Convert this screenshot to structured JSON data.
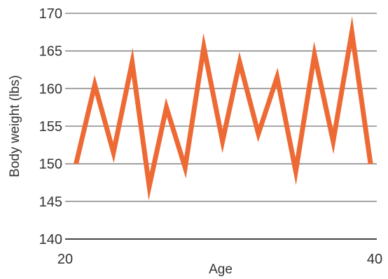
{
  "chart_data": {
    "type": "line",
    "title": "",
    "xlabel": "Age",
    "ylabel": "Body weight (lbs)",
    "xlim": [
      20,
      40
    ],
    "ylim": [
      140,
      170
    ],
    "x_ticks": [
      "20",
      "40"
    ],
    "y_ticks": [
      "140",
      "145",
      "150",
      "155",
      "160",
      "165",
      "170"
    ],
    "grid": true,
    "series": [
      {
        "color": "#ee6a35",
        "points": [
          [
            20.7,
            150
          ],
          [
            21.9,
            160.5
          ],
          [
            23.1,
            151.5
          ],
          [
            24.3,
            163.5
          ],
          [
            25.4,
            147
          ],
          [
            26.5,
            157.5
          ],
          [
            27.7,
            149.5
          ],
          [
            28.9,
            165.5
          ],
          [
            30.1,
            153
          ],
          [
            31.2,
            163.5
          ],
          [
            32.4,
            154
          ],
          [
            33.6,
            161.5
          ],
          [
            34.8,
            149
          ],
          [
            36.0,
            164.5
          ],
          [
            37.2,
            153
          ],
          [
            38.4,
            167.5
          ],
          [
            39.6,
            150
          ]
        ]
      }
    ]
  }
}
